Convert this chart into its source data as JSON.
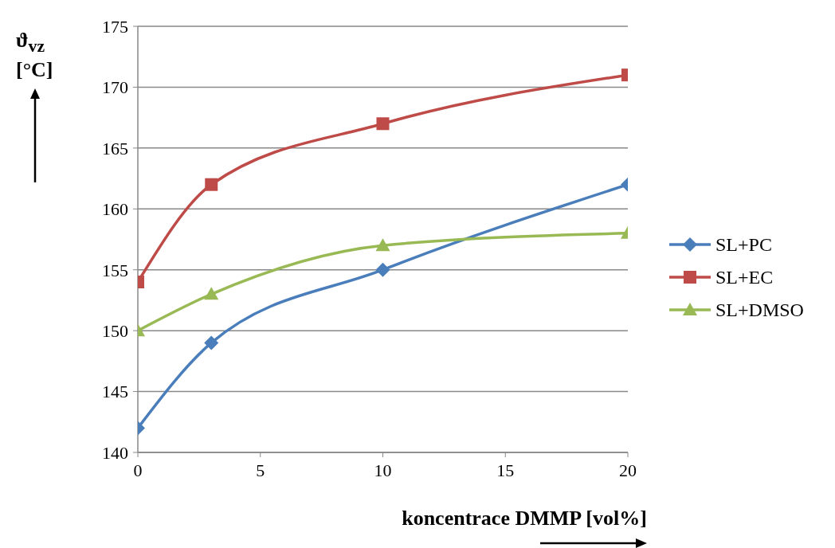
{
  "chart_data": {
    "type": "line",
    "xlabel": "koncentrace DMMP [vol%]",
    "ylabel": "ϑ$_{vz}$ [°C]",
    "x": [
      0,
      3,
      10,
      20
    ],
    "series": [
      {
        "name": "SL+PC",
        "color": "#4a7ebb",
        "marker": "diamond",
        "values": [
          142,
          149,
          155,
          162
        ]
      },
      {
        "name": "SL+EC",
        "color": "#be4b48",
        "marker": "square",
        "values": [
          154,
          162,
          167,
          171
        ]
      },
      {
        "name": "SL+DMSO",
        "color": "#98b954",
        "marker": "triangle",
        "values": [
          150,
          153,
          157,
          158
        ]
      }
    ],
    "xlim": [
      0,
      20
    ],
    "xticks": [
      0,
      5,
      10,
      15,
      20
    ],
    "ylim": [
      140,
      175
    ],
    "yticks": [
      140,
      145,
      150,
      155,
      160,
      165,
      170,
      175
    ],
    "grid": "y",
    "legend": "right",
    "line_style": "solid"
  }
}
